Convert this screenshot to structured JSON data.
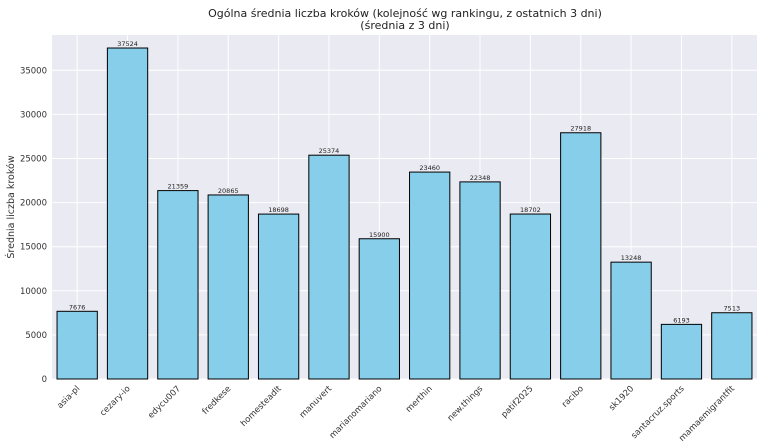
{
  "chart_data": {
    "type": "bar",
    "title": "Ogólna średnia liczba kroków (kolejność wg rankingu, z ostatnich 3 dni)",
    "subtitle": "(średnia z 3 dni)",
    "xlabel": "",
    "ylabel": "Średnia liczba kroków",
    "ylim": [
      0,
      39000
    ],
    "yticks": [
      0,
      5000,
      10000,
      15000,
      20000,
      25000,
      30000,
      35000
    ],
    "grid": true,
    "categories": [
      "asia-pl",
      "cezary-io",
      "edycu007",
      "fredkese",
      "homesteadlt",
      "manuvert",
      "marianomariano",
      "merthin",
      "new.things",
      "patif2025",
      "racibo",
      "sk1920",
      "santacruz.sports",
      "mamaemigrantfit"
    ],
    "values": [
      7676,
      37524,
      21359,
      20865,
      18698,
      25374,
      15900,
      23460,
      22348,
      18702,
      27918,
      13248,
      6193,
      7513
    ],
    "colors": {
      "bar": "#87ceeb",
      "edge": "#000000",
      "background": "#eaeaf2",
      "grid": "#ffffff"
    }
  }
}
